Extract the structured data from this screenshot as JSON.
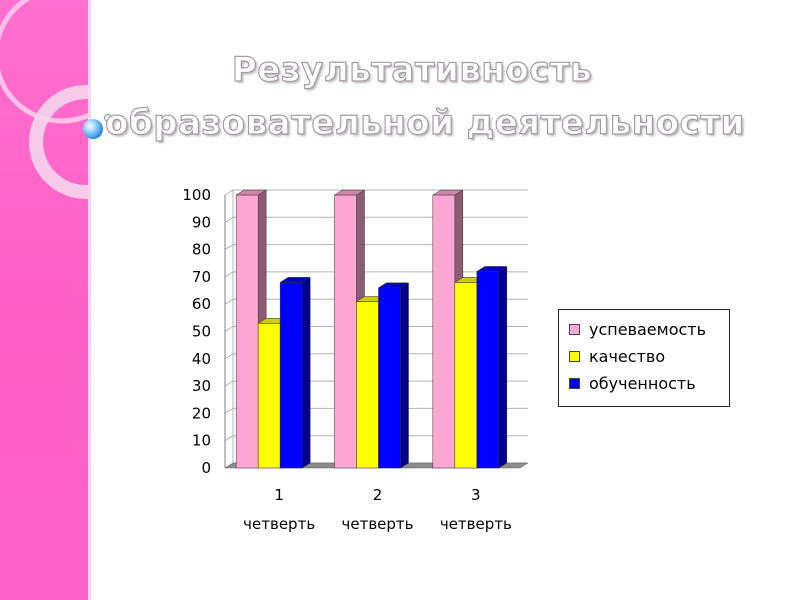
{
  "slide": {
    "title_line1": "Результативность",
    "title_line2": "образовательной деятельности"
  },
  "colors": {
    "band": "#ff66cc",
    "успеваемость": "#ffa6d2",
    "качество": "#ffff00",
    "обученность": "#0000ff"
  },
  "chart_data": {
    "type": "bar",
    "title": "",
    "xlabel": "",
    "ylabel": "",
    "categories": [
      [
        "1",
        "четверть"
      ],
      [
        "2",
        "четверть"
      ],
      [
        "3",
        "четверть"
      ]
    ],
    "series": [
      {
        "name": "успеваемость",
        "values": [
          100,
          100,
          100
        ]
      },
      {
        "name": "качество",
        "values": [
          53,
          61,
          68
        ]
      },
      {
        "name": "обученность",
        "values": [
          68,
          66,
          72
        ]
      }
    ],
    "ylim": [
      0,
      100
    ],
    "yticks": [
      "0",
      "10",
      "20",
      "30",
      "40",
      "50",
      "60",
      "70",
      "80",
      "90",
      "100"
    ],
    "grid": true,
    "legend_position": "right",
    "style": "3d"
  }
}
